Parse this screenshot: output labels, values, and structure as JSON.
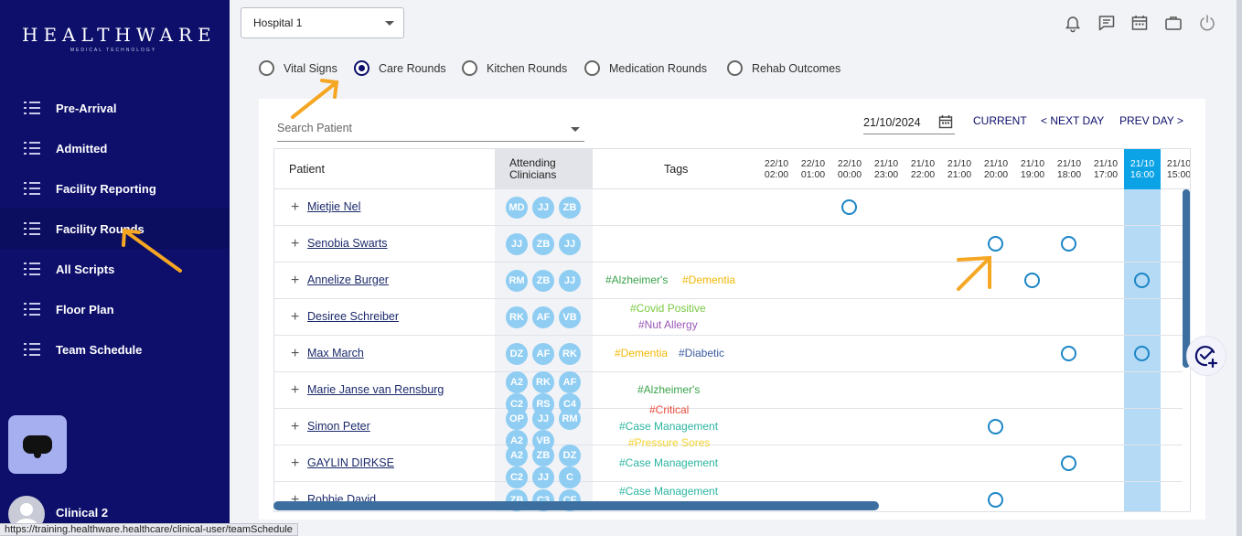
{
  "brand": {
    "name": "HEALTHWARE",
    "tagline": "MEDICAL TECHNOLOGY"
  },
  "sidebar": {
    "items": [
      {
        "label": "Pre-Arrival"
      },
      {
        "label": "Admitted"
      },
      {
        "label": "Facility Reporting"
      },
      {
        "label": "Facility Rounds"
      },
      {
        "label": "All Scripts"
      },
      {
        "label": "Floor Plan"
      },
      {
        "label": "Team Schedule"
      }
    ],
    "user": "Clinical 2"
  },
  "status_url": "https://training.healthware.healthcare/clinical-user/teamSchedule",
  "header": {
    "hospital": "Hospital 1",
    "icons": [
      "bell-icon",
      "message-icon",
      "calendar-icon",
      "briefcase-icon",
      "power-icon"
    ]
  },
  "round_types": [
    {
      "label": "Vital Signs",
      "selected": false
    },
    {
      "label": "Care Rounds",
      "selected": true
    },
    {
      "label": "Kitchen Rounds",
      "selected": false
    },
    {
      "label": "Medication Rounds",
      "selected": false
    },
    {
      "label": "Rehab Outcomes",
      "selected": false
    }
  ],
  "toolbar": {
    "search_placeholder": "Search Patient",
    "date": "21/10/2024",
    "current": "CURRENT",
    "next_day": "< NEXT DAY",
    "prev_day": "PREV DAY >"
  },
  "table": {
    "columns": {
      "patient": "Patient",
      "attending_1": "Attending",
      "attending_2": "Clinicians",
      "tags": "Tags"
    },
    "time_slots": [
      {
        "date": "22/10",
        "time": "02:00"
      },
      {
        "date": "22/10",
        "time": "01:00"
      },
      {
        "date": "22/10",
        "time": "00:00"
      },
      {
        "date": "21/10",
        "time": "23:00"
      },
      {
        "date": "21/10",
        "time": "22:00"
      },
      {
        "date": "21/10",
        "time": "21:00"
      },
      {
        "date": "21/10",
        "time": "20:00"
      },
      {
        "date": "21/10",
        "time": "19:00"
      },
      {
        "date": "21/10",
        "time": "18:00"
      },
      {
        "date": "21/10",
        "time": "17:00"
      },
      {
        "date": "21/10",
        "time": "16:00",
        "current": true
      },
      {
        "date": "21/10",
        "time": "15:00"
      }
    ],
    "rows": [
      {
        "name": "Mietjie Nel",
        "clinicians": [
          "MD",
          "JJ",
          "ZB"
        ],
        "tags": [],
        "slots": [
          2
        ]
      },
      {
        "name": "Senobia Swarts",
        "clinicians": [
          "JJ",
          "ZB",
          "JJ"
        ],
        "tags": [],
        "slots": [
          6,
          8
        ]
      },
      {
        "name": "Annelize Burger",
        "clinicians": [
          "RM",
          "ZB",
          "JJ"
        ],
        "tags": [
          {
            "text": "#Alzheimer's",
            "color": "#3aa34a"
          },
          {
            "text": "#Dementia",
            "color": "#f2b705"
          }
        ],
        "slots": [
          7,
          10
        ]
      },
      {
        "name": "Desiree Schreiber",
        "clinicians": [
          "RK",
          "AF",
          "VB"
        ],
        "tags": [
          {
            "text": "#Covid Positive",
            "color": "#7ac943"
          },
          {
            "text": "#Nut Allergy",
            "color": "#9b59b6"
          }
        ],
        "slots": []
      },
      {
        "name": "Max March",
        "clinicians": [
          "DZ",
          "AF",
          "RK"
        ],
        "tags": [
          {
            "text": "#Dementia",
            "color": "#f2b705"
          },
          {
            "text": "#Diabetic",
            "color": "#3a5ba0"
          }
        ],
        "slots": [
          8,
          10
        ]
      },
      {
        "name": "Marie Janse van Rensburg",
        "clinicians": [
          "A2",
          "RK",
          "AF",
          "C2",
          "RS",
          "C4"
        ],
        "tags": [
          {
            "text": "#Alzheimer's",
            "color": "#3aa34a"
          }
        ],
        "slots": []
      },
      {
        "name": "Simon Peter",
        "clinicians": [
          "OP",
          "JJ",
          "RM",
          "A2",
          "VB"
        ],
        "tags": [
          {
            "text": "#Critical",
            "color": "#e74c3c"
          },
          {
            "text": "#Case Management",
            "color": "#2bb5a0"
          },
          {
            "text": "#Pressure Sores",
            "color": "#f2d22e"
          }
        ],
        "slots": [
          6
        ]
      },
      {
        "name": "GAYLIN DIRKSE",
        "clinicians": [
          "A2",
          "ZB",
          "DZ",
          "C2",
          "JJ",
          "C"
        ],
        "tags": [
          {
            "text": "#Case Management",
            "color": "#2bb5a0"
          }
        ],
        "slots": [
          8
        ]
      },
      {
        "name": "Robbie David",
        "clinicians": [
          "ZB",
          "C3",
          "CF"
        ],
        "tags": [
          {
            "text": "#Case Management",
            "color": "#2bb5a0"
          }
        ],
        "slots": [
          6
        ]
      }
    ]
  },
  "colors": {
    "sidebar": "#0d0f6b",
    "accent": "#0ba3e6",
    "highlight_column": "#b5daf6",
    "annotation_arrow": "#f5a623"
  }
}
